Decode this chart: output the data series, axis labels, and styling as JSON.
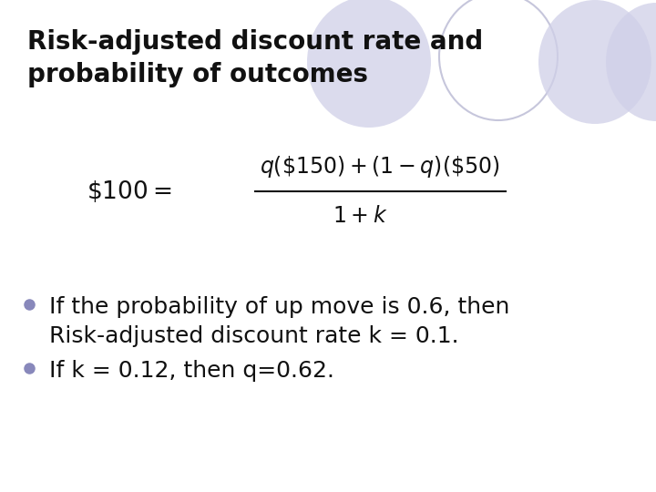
{
  "title_line1": "Risk-adjusted discount rate and",
  "title_line2": "probability of outcomes",
  "formula_left": "$\\$100 = $",
  "formula_numerator": "$q(\\$150)+(1-q)(\\$50)$",
  "formula_denominator": "$1+k$",
  "bullet1_line1": "If the probability of up move is 0.6, then",
  "bullet1_line2": "Risk-adjusted discount rate k = 0.1.",
  "bullet2": "If k = 0.12, then q=0.62.",
  "background_color": "#ffffff",
  "title_fontsize": 20,
  "formula_fontsize": 17,
  "bullet_fontsize": 18,
  "title_color": "#111111",
  "bullet_color": "#111111",
  "bullet_dot_color": "#8888bb",
  "circle_fill_color": "#d0d0e8",
  "circle_outline_color": "#c0c0d8",
  "circle_alpha": 0.75
}
